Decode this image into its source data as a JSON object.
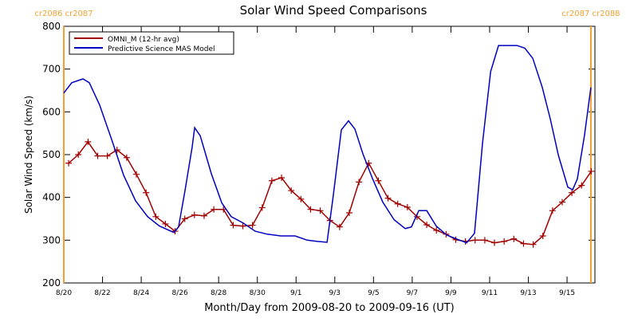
{
  "chart_data": {
    "type": "line",
    "title": "Solar Wind Speed Comparisons",
    "xlabel": "Month/Day from 2009-08-20 to 2009-09-16 (UT)",
    "ylabel": "Solar Wind Speed (km/s)",
    "xlim": [
      0,
      27.44
    ],
    "ylim": [
      200,
      800
    ],
    "yticks": [
      200,
      300,
      400,
      500,
      600,
      700,
      800
    ],
    "xticks": [
      {
        "value": 0,
        "label": "8/20"
      },
      {
        "value": 2,
        "label": "8/22"
      },
      {
        "value": 4,
        "label": "8/24"
      },
      {
        "value": 6,
        "label": "8/26"
      },
      {
        "value": 8,
        "label": "8/28"
      },
      {
        "value": 10,
        "label": "8/30"
      },
      {
        "value": 12,
        "label": "9/1"
      },
      {
        "value": 14,
        "label": "9/3"
      },
      {
        "value": 16,
        "label": "9/5"
      },
      {
        "value": 18,
        "label": "9/7"
      },
      {
        "value": 20,
        "label": "9/9"
      },
      {
        "value": 22,
        "label": "9/11"
      },
      {
        "value": 24,
        "label": "9/13"
      },
      {
        "value": 26,
        "label": "9/15"
      }
    ],
    "markers": [
      {
        "x": 0,
        "label": "cr2086 cr2087",
        "color": "#f0a030"
      },
      {
        "x": 27.23,
        "label": "cr2087 cr2088",
        "color": "#f0a030"
      }
    ],
    "legend": "upper left",
    "series": [
      {
        "name": "OMNI_M (12-hr avg)",
        "color": "#a00000",
        "marker": "+",
        "x": [
          0.25,
          0.75,
          1.25,
          1.75,
          2.25,
          2.75,
          3.25,
          3.75,
          4.25,
          4.75,
          5.25,
          5.75,
          6.25,
          6.75,
          7.25,
          7.75,
          8.25,
          8.75,
          9.25,
          9.75,
          10.25,
          10.75,
          11.25,
          11.75,
          12.25,
          12.75,
          13.25,
          13.75,
          14.25,
          14.75,
          15.25,
          15.75,
          16.25,
          16.75,
          17.25,
          17.75,
          18.25,
          18.75,
          19.25,
          19.75,
          20.25,
          20.75,
          21.25,
          21.75,
          22.25,
          22.75,
          23.25,
          23.75,
          24.25,
          24.75,
          25.25,
          25.75,
          26.25,
          26.75,
          27.25
        ],
        "values": [
          480,
          500,
          530,
          497,
          497,
          511,
          493,
          454,
          411,
          355,
          338,
          321,
          350,
          359,
          357,
          372,
          372,
          335,
          333,
          335,
          376,
          439,
          446,
          416,
          396,
          372,
          369,
          346,
          331,
          364,
          436,
          480,
          439,
          398,
          385,
          377,
          355,
          336,
          323,
          314,
          301,
          297,
          300,
          300,
          294,
          297,
          303,
          292,
          290,
          310,
          369,
          389,
          411,
          428,
          461
        ]
      },
      {
        "name": "Predictive Science MAS Model",
        "color": "#0000c0",
        "x": [
          0,
          0.41,
          0.99,
          1.32,
          1.85,
          2.47,
          3.09,
          3.71,
          4.33,
          4.94,
          5.69,
          5.93,
          6.26,
          6.63,
          6.76,
          7.05,
          7.62,
          8.16,
          8.65,
          9.27,
          9.89,
          10.51,
          11.21,
          11.95,
          12.57,
          13.1,
          13.6,
          13.93,
          14.34,
          14.71,
          15.04,
          15.45,
          15.95,
          16.48,
          17.06,
          17.64,
          17.96,
          18.34,
          18.75,
          19.24,
          19.78,
          20.4,
          20.81,
          21.22,
          21.63,
          22.05,
          22.46,
          23.41,
          23.82,
          24.23,
          24.72,
          25.14,
          25.55,
          26.04,
          26.29,
          26.53,
          26.9,
          27.23
        ],
        "values": [
          644,
          668,
          677,
          668,
          616,
          536,
          452,
          392,
          355,
          333,
          318,
          331,
          415,
          517,
          563,
          544,
          456,
          387,
          355,
          340,
          321,
          314,
          310,
          310,
          300,
          297,
          295,
          407,
          558,
          579,
          560,
          502,
          444,
          389,
          348,
          327,
          331,
          369,
          369,
          333,
          312,
          301,
          294,
          316,
          526,
          694,
          755,
          755,
          749,
          725,
          657,
          582,
          499,
          424,
          418,
          443,
          545,
          657
        ]
      }
    ]
  }
}
